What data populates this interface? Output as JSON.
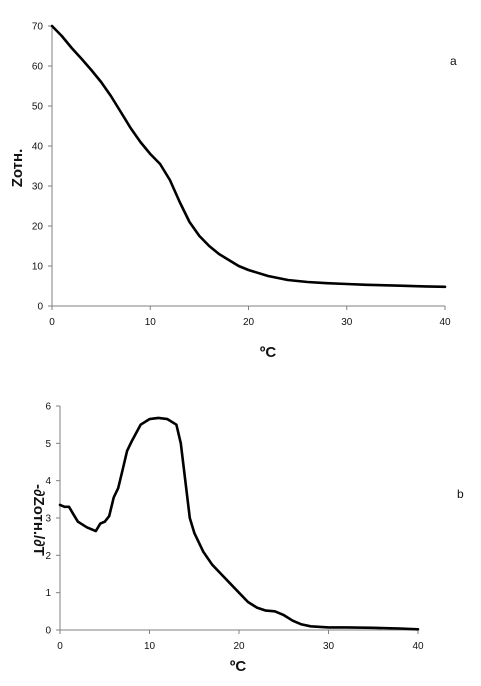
{
  "chart_data": [
    {
      "type": "line",
      "panel_label": "a",
      "xlabel": "ºC",
      "ylabel": "Zотн.",
      "xlim": [
        0,
        40
      ],
      "ylim": [
        0,
        70
      ],
      "xticks": [
        0,
        10,
        20,
        30,
        40
      ],
      "yticks": [
        0,
        10,
        20,
        30,
        40,
        50,
        60,
        70
      ],
      "grid": false,
      "series": [
        {
          "x": [
            0,
            1,
            2,
            3,
            4,
            5,
            6,
            7,
            8,
            9,
            10,
            11,
            12,
            13,
            14,
            15,
            16,
            17,
            18,
            19,
            20,
            22,
            24,
            26,
            28,
            30,
            32,
            35,
            38,
            40
          ],
          "y": [
            70,
            67.5,
            64.5,
            61.8,
            59,
            56,
            52.5,
            48.5,
            44.5,
            41,
            38,
            35.5,
            31.5,
            26,
            21,
            17.5,
            15,
            13,
            11.5,
            10,
            9,
            7.5,
            6.5,
            6,
            5.7,
            5.5,
            5.3,
            5.1,
            4.9,
            4.8
          ]
        }
      ]
    },
    {
      "type": "line",
      "panel_label": "b",
      "xlabel": "ºC",
      "ylabel": "-∂Zотн./∂T",
      "xlim": [
        0,
        40
      ],
      "ylim": [
        0,
        6
      ],
      "xticks": [
        0,
        10,
        20,
        30,
        40
      ],
      "yticks": [
        0,
        1,
        2,
        3,
        4,
        5,
        6
      ],
      "grid": false,
      "series": [
        {
          "x": [
            0,
            0.5,
            1,
            1.5,
            2,
            3,
            4,
            4.5,
            5,
            5.5,
            6,
            6.5,
            7,
            7.5,
            8,
            9,
            10,
            11,
            12,
            13,
            13.5,
            14,
            14.5,
            15,
            16,
            17,
            18,
            19,
            20,
            21,
            22,
            23,
            24,
            25,
            26,
            27,
            28,
            30,
            32,
            35,
            38,
            40
          ],
          "y": [
            3.35,
            3.3,
            3.3,
            3.1,
            2.9,
            2.75,
            2.65,
            2.85,
            2.9,
            3.05,
            3.55,
            3.8,
            4.3,
            4.8,
            5.05,
            5.5,
            5.65,
            5.68,
            5.65,
            5.5,
            5.0,
            4.0,
            3.0,
            2.6,
            2.1,
            1.75,
            1.5,
            1.25,
            1.0,
            0.75,
            0.6,
            0.52,
            0.5,
            0.4,
            0.25,
            0.15,
            0.1,
            0.07,
            0.07,
            0.06,
            0.04,
            0.02
          ]
        }
      ]
    }
  ]
}
